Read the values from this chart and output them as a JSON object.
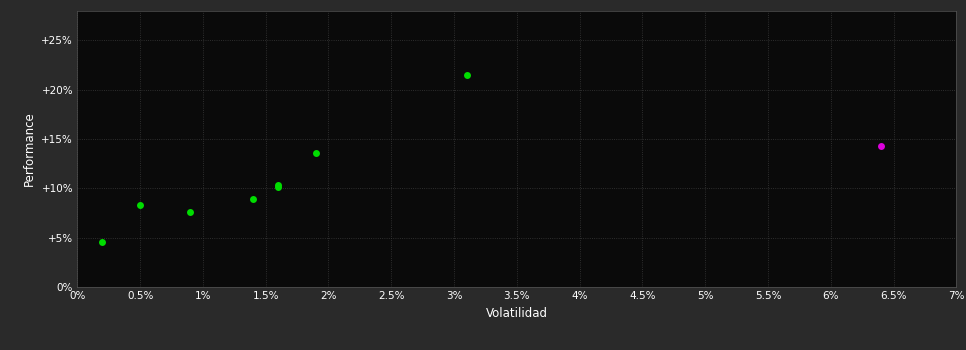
{
  "background_color": "#2a2a2a",
  "plot_bg_color": "#0a0a0a",
  "grid_color": "#3a3a3a",
  "text_color": "#ffffff",
  "xlabel": "Volatilidad",
  "ylabel": "Performance",
  "xlim": [
    0,
    0.07
  ],
  "ylim": [
    0,
    0.28
  ],
  "xticks": [
    0.0,
    0.005,
    0.01,
    0.015,
    0.02,
    0.025,
    0.03,
    0.035,
    0.04,
    0.045,
    0.05,
    0.055,
    0.06,
    0.065,
    0.07
  ],
  "xtick_labels": [
    "0%",
    "0.5%",
    "1%",
    "1.5%",
    "2%",
    "2.5%",
    "3%",
    "3.5%",
    "4%",
    "4.5%",
    "5%",
    "5.5%",
    "6%",
    "6.5%",
    "7%"
  ],
  "yticks": [
    0.0,
    0.05,
    0.1,
    0.15,
    0.2,
    0.25
  ],
  "ytick_labels": [
    "0%",
    "+5%",
    "+10%",
    "+15%",
    "+20%",
    "+25%"
  ],
  "green_points": [
    [
      0.002,
      0.046
    ],
    [
      0.005,
      0.083
    ],
    [
      0.009,
      0.076
    ],
    [
      0.014,
      0.089
    ],
    [
      0.016,
      0.103
    ],
    [
      0.016,
      0.101
    ],
    [
      0.019,
      0.136
    ],
    [
      0.031,
      0.215
    ]
  ],
  "magenta_points": [
    [
      0.064,
      0.143
    ]
  ],
  "green_color": "#00dd00",
  "magenta_color": "#dd00dd",
  "marker_size": 25
}
